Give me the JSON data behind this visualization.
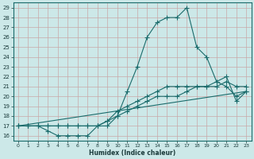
{
  "title": "",
  "xlabel": "Humidex (Indice chaleur)",
  "bg_color": "#cce8e8",
  "grid_color": "#b8d8d8",
  "line_color": "#1a6b6b",
  "xlim": [
    -0.5,
    23.5
  ],
  "ylim": [
    15.5,
    29.5
  ],
  "yticks": [
    16,
    17,
    18,
    19,
    20,
    21,
    22,
    23,
    24,
    25,
    26,
    27,
    28,
    29
  ],
  "xticks": [
    0,
    1,
    2,
    3,
    4,
    5,
    6,
    7,
    8,
    9,
    10,
    11,
    12,
    13,
    14,
    15,
    16,
    17,
    18,
    19,
    20,
    21,
    22,
    23
  ],
  "line1_x": [
    0,
    1,
    2,
    3,
    4,
    5,
    6,
    7,
    8,
    9,
    10,
    11,
    12,
    13,
    14,
    15,
    16,
    17,
    18,
    19,
    20,
    21,
    22,
    23
  ],
  "line1_y": [
    17,
    17,
    17,
    16.5,
    16,
    16,
    16,
    16,
    17,
    17,
    18,
    20.5,
    23,
    26,
    27.5,
    28,
    28,
    29,
    25,
    24,
    21.5,
    22,
    19.5,
    20.5
  ],
  "line2_x": [
    0,
    1,
    2,
    3,
    4,
    5,
    6,
    7,
    8,
    9,
    10,
    11,
    12,
    13,
    14,
    15,
    16,
    17,
    18,
    19,
    20,
    21,
    22,
    23
  ],
  "line2_y": [
    17,
    17,
    17,
    17,
    17,
    17,
    17,
    17,
    17,
    17.5,
    18.5,
    19,
    19.5,
    20,
    20.5,
    21,
    21,
    21,
    21,
    21,
    21.5,
    21,
    20,
    20.5
  ],
  "line3_x": [
    0,
    1,
    2,
    3,
    4,
    5,
    6,
    7,
    8,
    9,
    10,
    11,
    12,
    13,
    14,
    15,
    16,
    17,
    18,
    19,
    20,
    21,
    22,
    23
  ],
  "line3_y": [
    17,
    17,
    17,
    17,
    17,
    17,
    17,
    17,
    17,
    17.5,
    18,
    18.5,
    19,
    19.5,
    20,
    20,
    20,
    20.5,
    21,
    21,
    21,
    21.5,
    21,
    21
  ],
  "line4_x": [
    0,
    23
  ],
  "line4_y": [
    17,
    20.5
  ]
}
